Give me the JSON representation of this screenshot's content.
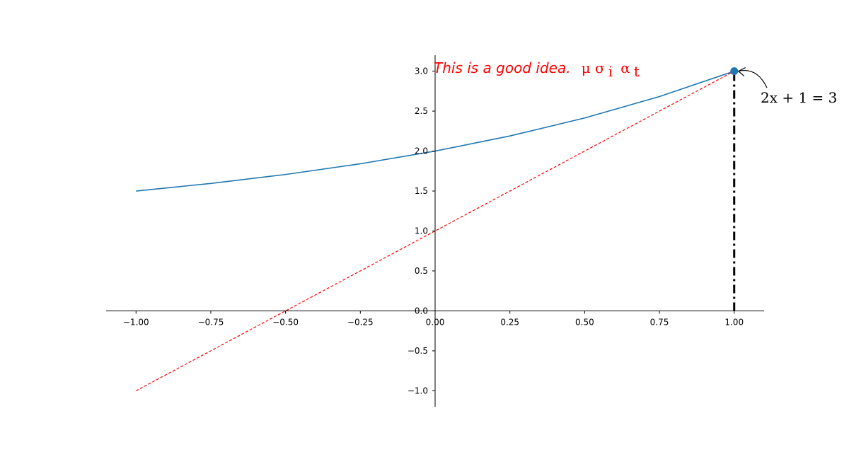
{
  "chart_data": {
    "type": "line",
    "title": "",
    "xlabel": "",
    "ylabel": "",
    "xlim": [
      -1.1,
      1.1
    ],
    "ylim": [
      -1.2,
      3.2
    ],
    "spines": "centered-at-origin",
    "grid": false,
    "x_ticks": [
      -1.0,
      -0.75,
      -0.5,
      -0.25,
      0.0,
      0.25,
      0.5,
      0.75,
      1.0
    ],
    "x_tick_labels": [
      "−1.00",
      "−0.75",
      "−0.50",
      "−0.25",
      "0.00",
      "0.25",
      "0.50",
      "0.75",
      "1.00"
    ],
    "y_ticks": [
      -1.0,
      -0.5,
      0.0,
      0.5,
      1.0,
      1.5,
      2.0,
      2.5,
      3.0
    ],
    "y_tick_labels": [
      "−1.0",
      "−0.5",
      "0.0",
      "0.5",
      "1.0",
      "1.5",
      "2.0",
      "2.5",
      "3.0"
    ],
    "series": [
      {
        "style": "solid",
        "color": "#1f77b4",
        "x": [
          -1.0,
          -0.75,
          -0.5,
          -0.25,
          0.0,
          0.25,
          0.5,
          0.75,
          1.0
        ],
        "y": [
          1.5,
          1.595,
          1.707,
          1.841,
          2.0,
          2.189,
          2.414,
          2.682,
          3.0
        ]
      },
      {
        "style": "dashed",
        "color": "#ff0000",
        "x": [
          -1.0,
          1.0
        ],
        "y": [
          -1.0,
          3.0
        ]
      }
    ],
    "highlight_point": {
      "x": 1.0,
      "y": 3.0,
      "color": "#1f77b4"
    },
    "vertical_line": {
      "x": 1.0,
      "y_from": 0.0,
      "y_to": 3.0,
      "style": "dashdot",
      "color": "#000000"
    },
    "annotations": [
      {
        "text": "This is a good idea.",
        "math_text": "μ σ",
        "sub1": "i",
        "math_text2": "α",
        "sub2": "t",
        "color": "#ff0000"
      },
      {
        "text": "2x + 1 = 3",
        "color": "#000000",
        "points_to": {
          "x": 1.0,
          "y": 3.0
        }
      }
    ]
  }
}
